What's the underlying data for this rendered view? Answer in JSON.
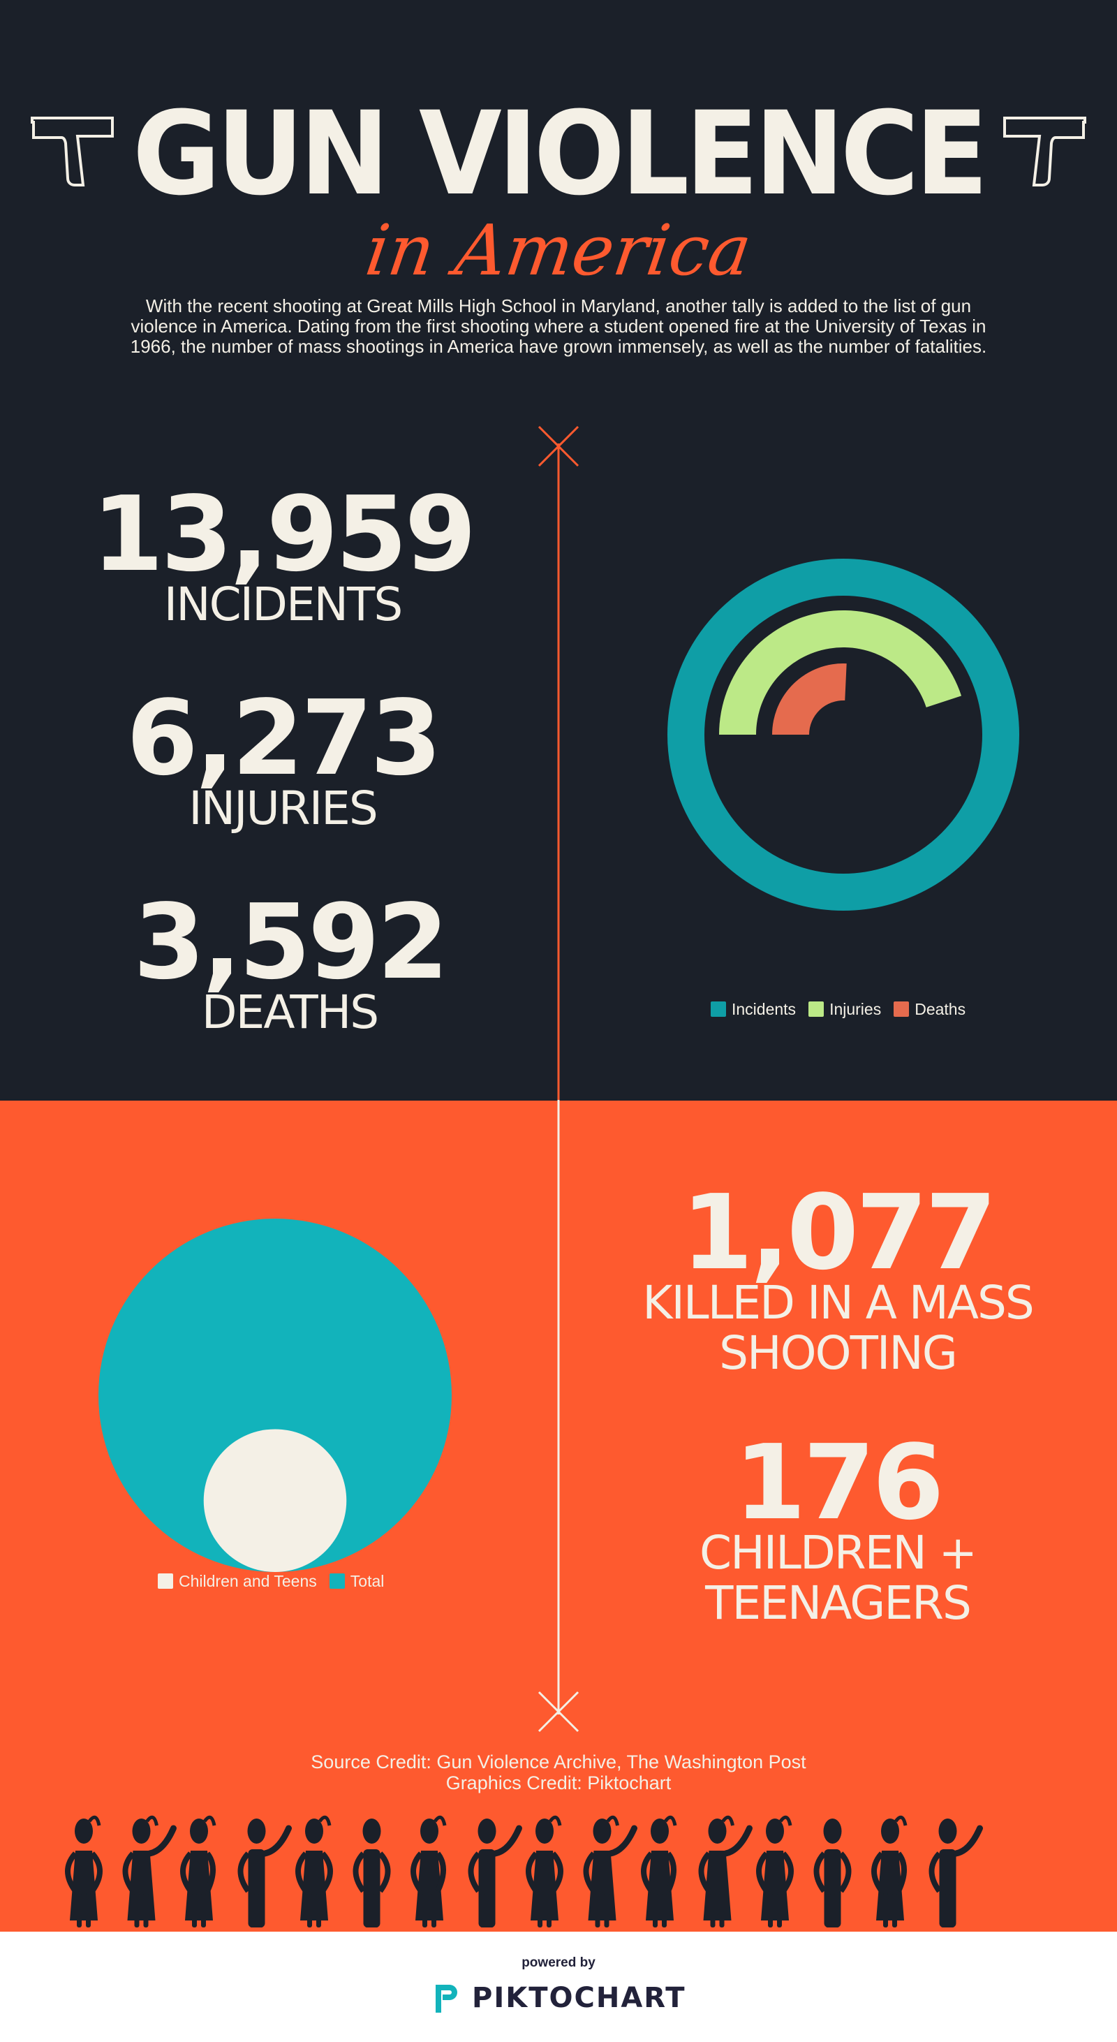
{
  "header": {
    "title": "GUN VIOLENCE",
    "subtitle": "in America",
    "gun_icon": "pistol-outline-icon"
  },
  "intro": "With the recent shooting at Great Mills High School in Maryland, another tally is added to the list of gun violence in America. Dating from the first shooting where a student opened fire at the University of Texas in 1966, the number of mass shootings in America have grown immensely, as well as the number of fatalities.",
  "stats": [
    {
      "value": "13,959",
      "label": "INCIDENTS"
    },
    {
      "value": "6,273",
      "label": "INJURIES"
    },
    {
      "value": "3,592",
      "label": "DEATHS"
    }
  ],
  "mass": {
    "value": "1,077",
    "label_1": "KILLED IN A MASS",
    "label_2": "SHOOTING"
  },
  "kids": {
    "value": "176",
    "label_1": "CHILDREN +",
    "label_2": "TEENAGERS"
  },
  "colors": {
    "dark": "#1b2029",
    "orange": "#fe5a2f",
    "cream": "#f4f0e6",
    "incidents": "#0f9ea6",
    "injuries": "#bce987",
    "deaths": "#e56b4e",
    "total": "#12b3bb"
  },
  "chart_data": [
    {
      "type": "radial-bar",
      "series": [
        {
          "name": "Incidents",
          "value": 13959,
          "color": "#0f9ea6"
        },
        {
          "name": "Injuries",
          "value": 6273,
          "color": "#bce987"
        },
        {
          "name": "Deaths",
          "value": 3592,
          "color": "#e56b4e"
        }
      ],
      "max": 13959,
      "legend": "bottom"
    },
    {
      "type": "bubble",
      "series": [
        {
          "name": "Children and Teens",
          "value": 176,
          "color": "#f4f0e6"
        },
        {
          "name": "Total",
          "value": 1077,
          "color": "#12b3bb"
        }
      ],
      "legend": "bottom"
    }
  ],
  "credits": {
    "source": "Source Credit: Gun Violence Archive, The Washington Post",
    "graphics": "Graphics Credit: Piktochart"
  },
  "people": [
    "girl",
    "girl-wave",
    "girl-salute",
    "boy-wave",
    "girl",
    "boy",
    "girl-salute",
    "boy-wave",
    "girl",
    "girl-wave",
    "girl-salute",
    "girl-wave",
    "girl",
    "boy",
    "girl-salute",
    "boy-wave"
  ],
  "footer": {
    "powered_by": "powered by",
    "brand": "PIKTOCHART"
  }
}
